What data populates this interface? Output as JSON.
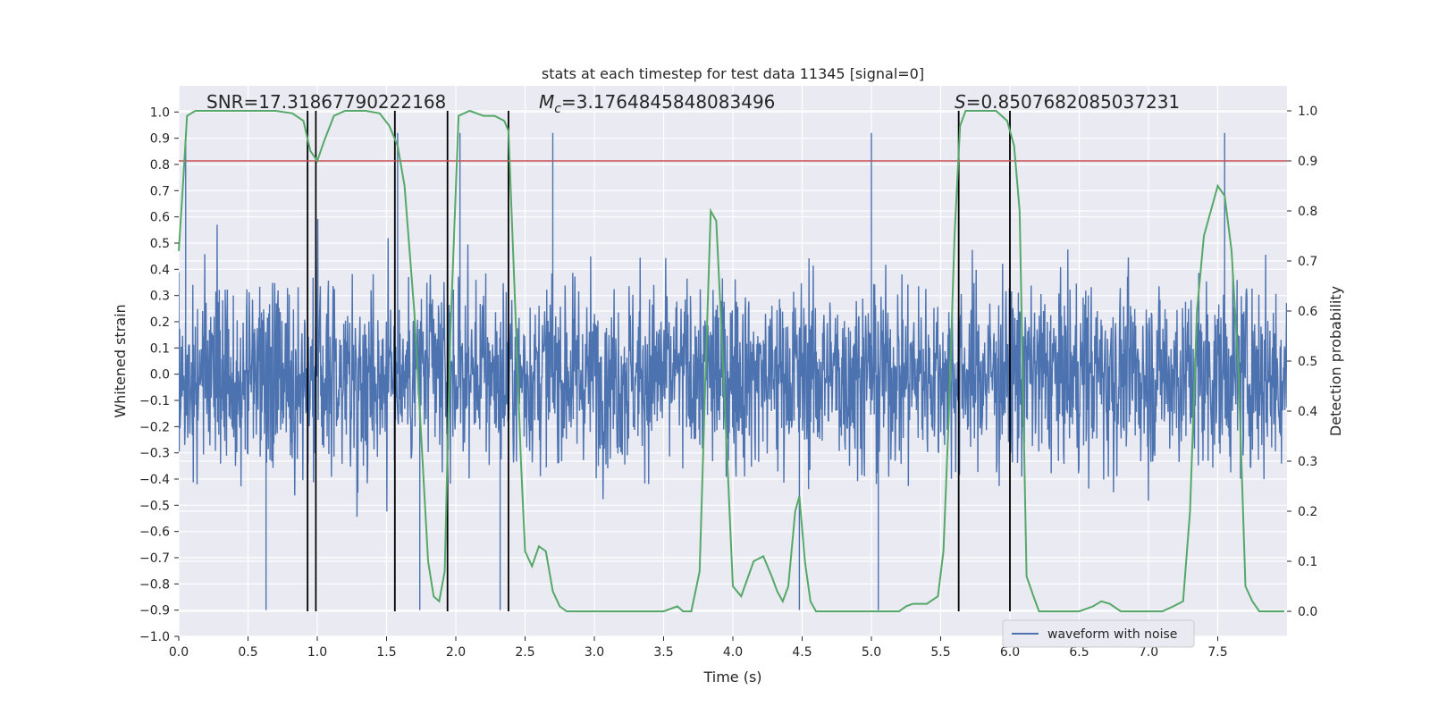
{
  "chart_data": {
    "type": "line",
    "title": "stats at each timestep for test data 11345 [signal=0]",
    "xlabel": "Time (s)",
    "ylabel_left": "Whitened strain",
    "ylabel_right": "Detection probability",
    "xlim": [
      0.0,
      8.0
    ],
    "ylim_left": [
      -1.0,
      1.1
    ],
    "ylim_right": [
      -0.05,
      1.05
    ],
    "x_ticks": [
      0.0,
      0.5,
      1.0,
      1.5,
      2.0,
      2.5,
      3.0,
      3.5,
      4.0,
      4.5,
      5.0,
      5.5,
      6.0,
      6.5,
      7.0,
      7.5
    ],
    "x_tick_labels": [
      "0.0",
      "0.5",
      "1.0",
      "1.5",
      "2.0",
      "2.5",
      "3.0",
      "3.5",
      "4.0",
      "4.5",
      "5.0",
      "5.5",
      "6.0",
      "6.5",
      "7.0",
      "7.5"
    ],
    "y_left_ticks": [
      -1.0,
      -0.9,
      -0.8,
      -0.7,
      -0.6,
      -0.5,
      -0.4,
      -0.3,
      -0.2,
      -0.1,
      0.0,
      0.1,
      0.2,
      0.3,
      0.4,
      0.5,
      0.6,
      0.7,
      0.8,
      0.9,
      1.0
    ],
    "y_left_tick_labels": [
      "−1.0",
      "−0.9",
      "−0.8",
      "−0.7",
      "−0.6",
      "−0.5",
      "−0.4",
      "−0.3",
      "−0.2",
      "−0.1",
      "0.0",
      "0.1",
      "0.2",
      "0.3",
      "0.4",
      "0.5",
      "0.6",
      "0.7",
      "0.8",
      "0.9",
      "1.0"
    ],
    "y_right_ticks": [
      0.0,
      0.1,
      0.2,
      0.3,
      0.4,
      0.5,
      0.6,
      0.7,
      0.8,
      0.9,
      1.0
    ],
    "y_right_tick_labels": [
      "0.0",
      "0.1",
      "0.2",
      "0.3",
      "0.4",
      "0.5",
      "0.6",
      "0.7",
      "0.8",
      "0.9",
      "1.0"
    ],
    "annotations": [
      {
        "label": "SNR=17.31867790222168",
        "x": 0.2
      },
      {
        "label": "M_c=3.1764845848083496",
        "x": 2.6
      },
      {
        "label": "S=0.8507682085037231",
        "x": 5.6
      }
    ],
    "threshold": {
      "value": 0.9,
      "axis": "right",
      "color": "#c44e52"
    },
    "vertical_lines": [
      0.93,
      0.99,
      1.56,
      1.94,
      2.38,
      5.63,
      6.0
    ],
    "series": [
      {
        "name": "waveform with noise",
        "axis": "left",
        "color": "#4c72b0",
        "amplitude_envelope": {
          "typical": 0.45,
          "peak": 1.0
        },
        "peaks_x": [
          0.05,
          0.63,
          1.58,
          1.74,
          2.03,
          2.32,
          2.7,
          4.48,
          5.0,
          5.05,
          7.55
        ]
      },
      {
        "name": "detection probability",
        "axis": "right",
        "color": "#55a868",
        "x": [
          0.0,
          0.03,
          0.06,
          0.12,
          0.3,
          0.5,
          0.7,
          0.82,
          0.9,
          0.95,
          1.0,
          1.05,
          1.12,
          1.2,
          1.35,
          1.45,
          1.52,
          1.58,
          1.63,
          1.7,
          1.75,
          1.8,
          1.84,
          1.88,
          1.92,
          1.96,
          2.02,
          2.1,
          2.2,
          2.28,
          2.35,
          2.38,
          2.43,
          2.47,
          2.5,
          2.55,
          2.6,
          2.65,
          2.7,
          2.75,
          2.8,
          2.88,
          2.95,
          3.0,
          3.2,
          3.5,
          3.6,
          3.64,
          3.7,
          3.76,
          3.8,
          3.84,
          3.88,
          3.92,
          3.96,
          4.0,
          4.06,
          4.15,
          4.22,
          4.28,
          4.32,
          4.36,
          4.4,
          4.45,
          4.48,
          4.52,
          4.56,
          4.6,
          4.7,
          4.9,
          5.1,
          5.2,
          5.25,
          5.3,
          5.4,
          5.48,
          5.52,
          5.56,
          5.6,
          5.64,
          5.68,
          5.72,
          5.8,
          5.9,
          5.98,
          6.03,
          6.07,
          6.12,
          6.17,
          6.21,
          6.3,
          6.5,
          6.6,
          6.66,
          6.72,
          6.8,
          6.9,
          7.0,
          7.1,
          7.18,
          7.25,
          7.3,
          7.35,
          7.4,
          7.45,
          7.5,
          7.55,
          7.6,
          7.65,
          7.7,
          7.75,
          7.8,
          7.9,
          7.98
        ],
        "y": [
          0.72,
          0.85,
          0.99,
          1.0,
          1.0,
          1.0,
          1.0,
          0.995,
          0.98,
          0.92,
          0.9,
          0.94,
          0.99,
          1.0,
          1.0,
          0.995,
          0.97,
          0.93,
          0.85,
          0.6,
          0.35,
          0.1,
          0.03,
          0.02,
          0.08,
          0.55,
          0.99,
          1.0,
          0.99,
          0.99,
          0.98,
          0.96,
          0.6,
          0.3,
          0.12,
          0.09,
          0.13,
          0.12,
          0.04,
          0.01,
          0.0,
          0.0,
          0.0,
          0.0,
          0.0,
          0.0,
          0.01,
          0.0,
          0.0,
          0.08,
          0.45,
          0.8,
          0.78,
          0.55,
          0.3,
          0.05,
          0.03,
          0.1,
          0.11,
          0.07,
          0.04,
          0.02,
          0.05,
          0.2,
          0.23,
          0.1,
          0.02,
          0.0,
          0.0,
          0.0,
          0.0,
          0.0,
          0.01,
          0.015,
          0.015,
          0.03,
          0.12,
          0.4,
          0.75,
          0.97,
          1.0,
          1.0,
          1.0,
          1.0,
          0.98,
          0.93,
          0.8,
          0.07,
          0.03,
          0.0,
          0.0,
          0.0,
          0.01,
          0.02,
          0.015,
          0.0,
          0.0,
          0.0,
          0.0,
          0.01,
          0.02,
          0.2,
          0.6,
          0.75,
          0.8,
          0.85,
          0.83,
          0.72,
          0.48,
          0.05,
          0.02,
          0.0,
          0.0,
          0.0
        ]
      }
    ],
    "legend": {
      "position": "lower-right",
      "entries": [
        "waveform with noise"
      ]
    }
  }
}
